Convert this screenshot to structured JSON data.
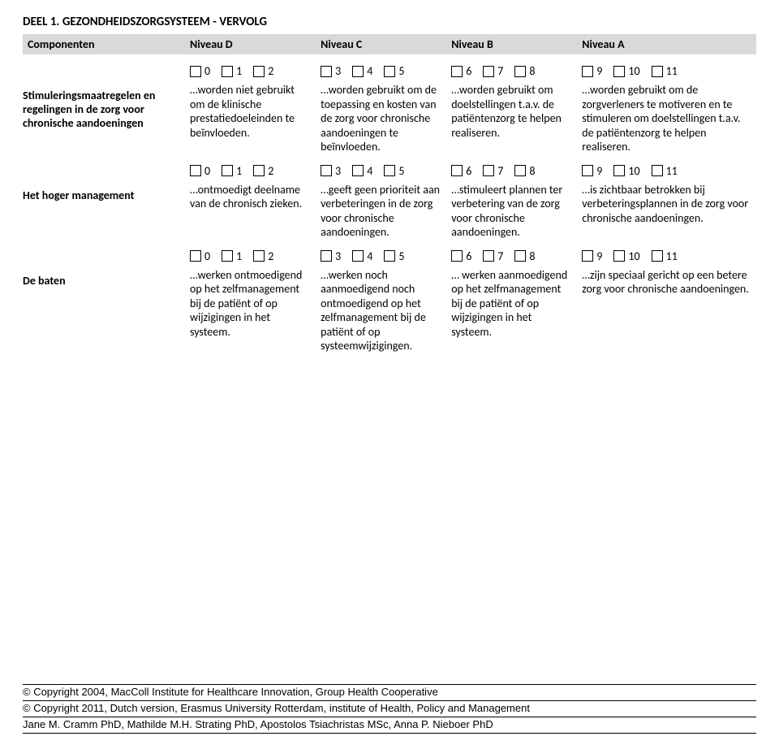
{
  "title": "DEEL 1. GEZONDHEIDSZORGSYSTEEM - VERVOLG",
  "colors": {
    "header_bg": "#d9d9d9",
    "text": "#000000",
    "bg": "#ffffff"
  },
  "fonts": {
    "body": "Calibri",
    "footer": "Arial",
    "base_size": 14
  },
  "header": {
    "label": "Componenten",
    "cols": [
      "Niveau D",
      "Niveau C",
      "Niveau B",
      "Niveau A"
    ]
  },
  "rows": [
    {
      "label": "Stimuleringsmaatregelen en regelingen in de zorg voor chronische aandoeningen",
      "checks": [
        [
          "0",
          "1",
          "2"
        ],
        [
          "3",
          "4",
          "5"
        ],
        [
          "6",
          "7",
          "8"
        ],
        [
          "9",
          "10",
          "11"
        ]
      ],
      "desc": [
        "…worden niet gebruikt om de klinische prestatiedoeleinden te beïnvloeden.",
        "…worden gebruikt om de toepassing en kosten van de zorg voor chronische aandoeningen te beïnvloeden.",
        "…worden gebruikt om doelstellingen t.a.v. de patiëntenzorg te helpen realiseren.",
        "…worden gebruikt om de zorgverleners te motiveren en te stimuleren om doelstellingen t.a.v. de patiëntenzorg te helpen realiseren."
      ]
    },
    {
      "label": "Het hoger management",
      "checks": [
        [
          "0",
          "1",
          "2"
        ],
        [
          "3",
          "4",
          "5"
        ],
        [
          "6",
          "7",
          "8"
        ],
        [
          "9",
          "10",
          "11"
        ]
      ],
      "desc": [
        "…ontmoedigt deelname van de chronisch zieken.",
        "…geeft geen prioriteit aan verbeteringen in de zorg voor chronische aandoeningen.",
        "…stimuleert plannen ter verbetering van de zorg voor chronische aandoeningen.",
        "…is zichtbaar betrokken bij verbeteringsplannen in de zorg voor chronische aandoeningen."
      ]
    },
    {
      "label": "De baten",
      "checks": [
        [
          "0",
          "1",
          "2"
        ],
        [
          "3",
          "4",
          "5"
        ],
        [
          "6",
          "7",
          "8"
        ],
        [
          "9",
          "10",
          "11"
        ]
      ],
      "desc": [
        "…werken ontmoedigend op het zelfmanagement bij de patiënt of op wijzigingen in het systeem.",
        "…werken noch aanmoedigend noch ontmoedigend op het zelfmanagement bij de patiënt of op systeemwijzigingen.",
        "… werken aanmoedigend op het zelfmanagement bij de patiënt of op wijzigingen in het systeem.",
        "…zijn speciaal gericht op een betere zorg voor chronische aandoeningen."
      ]
    }
  ],
  "footer": [
    "© Copyright 2004, MacColl Institute for Healthcare Innovation, Group Health Cooperative",
    "© Copyright 2011, Dutch version, Erasmus University Rotterdam, institute of Health, Policy and Management",
    "Jane M. Cramm PhD, Mathilde M.H. Strating PhD, Apostolos Tsiachristas MSc, Anna P. Nieboer PhD"
  ]
}
